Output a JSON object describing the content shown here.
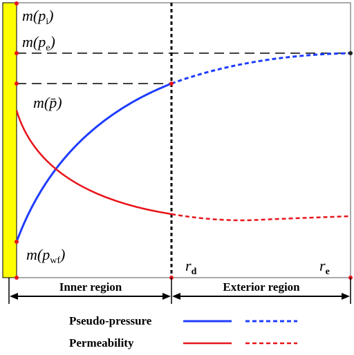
{
  "labels": {
    "m_pi": "m(p",
    "m_pi_sub": "i",
    "m_pe": "m(p",
    "m_pe_sub": "e",
    "m_pbar": "m(p̄)",
    "m_pwf": "m(p",
    "m_pwf_sub": "wf",
    "close_paren": ")",
    "rd": "r",
    "rd_sub": "d",
    "re": "r",
    "re_sub": "e"
  },
  "regions": {
    "inner": "Inner region",
    "exterior": "Exterior region"
  },
  "legend": {
    "pseudo_pressure": "Pseudo-pressure",
    "permeability": "Permeability"
  },
  "colors": {
    "pseudo_pressure": "#1f3dff",
    "permeability": "#e8141b",
    "wellbore": "#ffff00",
    "wellbore_border": "#222222",
    "markers": "#e8141b"
  }
}
